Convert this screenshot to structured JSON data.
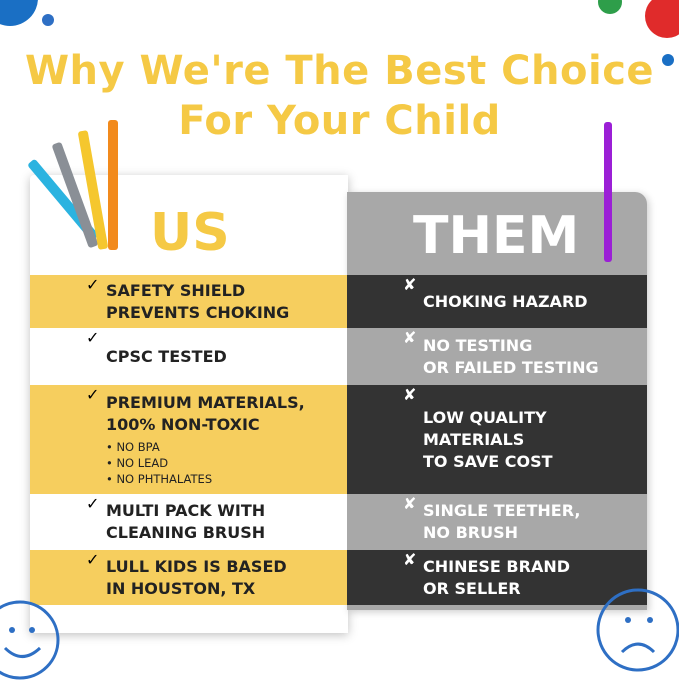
{
  "title": {
    "line1": "Why We're The Best Choice",
    "line2": "For Your Child"
  },
  "us": {
    "header": "US",
    "rows": [
      {
        "lines": [
          "SAFETY SHIELD",
          "PREVENTS CHOKING"
        ],
        "bullets": []
      },
      {
        "lines": [
          "CPSC TESTED"
        ],
        "bullets": []
      },
      {
        "lines": [
          "PREMIUM MATERIALS,",
          "100% NON-TOXIC"
        ],
        "bullets": [
          "NO BPA",
          "NO LEAD",
          "NO PHTHALATES"
        ]
      },
      {
        "lines": [
          "MULTI PACK WITH",
          "CLEANING BRUSH"
        ],
        "bullets": []
      },
      {
        "lines": [
          "LULL KIDS IS BASED",
          "IN HOUSTON, TX"
        ],
        "bullets": []
      }
    ],
    "icon": "checkmark-icon",
    "mark": "✓"
  },
  "them": {
    "header": "THEM",
    "rows": [
      {
        "lines": [
          "CHOKING HAZARD"
        ]
      },
      {
        "lines": [
          "NO TESTING",
          "OR FAILED TESTING"
        ]
      },
      {
        "lines": [
          "LOW QUALITY",
          "MATERIALS",
          "TO SAVE COST"
        ]
      },
      {
        "lines": [
          "SINGLE TEETHER,",
          "NO BRUSH"
        ]
      },
      {
        "lines": [
          "CHINESE BRAND",
          "OR SELLER"
        ]
      }
    ],
    "icon": "x-mark-icon",
    "mark": "✘"
  },
  "colors": {
    "title": "#F5C945",
    "yellow": "#F6CE5E",
    "dark": "#333333",
    "gray": "#A8A8A8",
    "purple": "#9B1FD6"
  }
}
